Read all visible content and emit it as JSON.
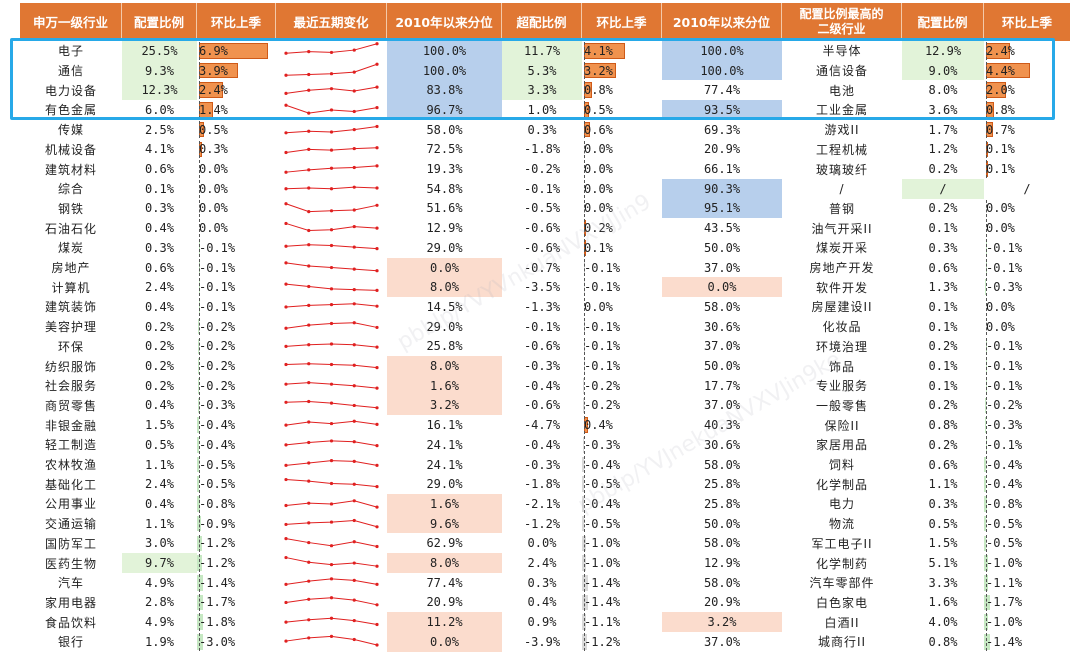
{
  "headers": {
    "industry": "申万一级行业",
    "weight": "配置比例",
    "weight_chg": "环比上季",
    "trend": "最近五期变化",
    "weight_pct": "2010年以来分位",
    "overweight": "超配比例",
    "over_chg": "环比上季",
    "over_pct": "2010年以来分位",
    "top_sub": "配置比例最高的\n二级行业",
    "sub_weight": "配置比例",
    "sub_chg": "环比上季"
  },
  "colors": {
    "header_bg": "#e07733",
    "increase_bar": "#f0924e",
    "decrease_bar": "#c6e8c3",
    "high_percentile": "#b7cfec",
    "low_percentile": "#fbdccd",
    "high_weight": "#e2f3d9",
    "sparkline": "#e02020",
    "highlight_box": "#27a9e8"
  },
  "chart_data": {
    "type": "table",
    "columns": [
      "申万一级行业",
      "配置比例",
      "环比上季",
      "最近五期变化",
      "2010年以来分位",
      "超配比例",
      "环比上季",
      "2010年以来分位",
      "配置比例最高的二级行业",
      "配置比例",
      "环比上季"
    ],
    "highlighted_rows": [
      "电子",
      "通信",
      "电力设备",
      "有色金属"
    ],
    "rows": [
      {
        "ind": "电子",
        "w": "25.5%",
        "wc": "6.9%",
        "wp": "100.0%",
        "ow": "11.7%",
        "oc": "4.1%",
        "op": "100.0%",
        "sub": "半导体",
        "sw": "12.9%",
        "sc": "2.4%",
        "spark": [
          0.35,
          0.45,
          0.4,
          0.55,
          0.95
        ]
      },
      {
        "ind": "通信",
        "w": "9.3%",
        "wc": "3.9%",
        "wp": "100.0%",
        "ow": "5.3%",
        "oc": "3.2%",
        "op": "100.0%",
        "sub": "通信设备",
        "sw": "9.0%",
        "sc": "4.4%",
        "spark": [
          0.2,
          0.25,
          0.3,
          0.4,
          0.9
        ]
      },
      {
        "ind": "电力设备",
        "w": "12.3%",
        "wc": "2.4%",
        "wp": "83.8%",
        "ow": "3.3%",
        "oc": "0.8%",
        "op": "77.4%",
        "sub": "电池",
        "sw": "8.0%",
        "sc": "2.0%",
        "spark": [
          0.3,
          0.5,
          0.6,
          0.45,
          0.7
        ]
      },
      {
        "ind": "有色金属",
        "w": "6.0%",
        "wc": "1.4%",
        "wp": "96.7%",
        "ow": "1.0%",
        "oc": "0.5%",
        "op": "93.5%",
        "sub": "工业金属",
        "sw": "3.6%",
        "sc": "0.8%",
        "spark": [
          0.8,
          0.3,
          0.5,
          0.4,
          0.65
        ]
      },
      {
        "ind": "传媒",
        "w": "2.5%",
        "wc": "0.5%",
        "wp": "58.0%",
        "ow": "0.3%",
        "oc": "0.6%",
        "op": "69.3%",
        "sub": "游戏II",
        "sw": "1.7%",
        "sc": "0.7%",
        "spark": [
          0.3,
          0.4,
          0.35,
          0.5,
          0.7
        ]
      },
      {
        "ind": "机械设备",
        "w": "4.1%",
        "wc": "0.3%",
        "wp": "72.5%",
        "ow": "-1.8%",
        "oc": "0.0%",
        "op": "20.9%",
        "sub": "工程机械",
        "sw": "1.2%",
        "sc": "0.1%",
        "spark": [
          0.3,
          0.5,
          0.45,
          0.55,
          0.6
        ]
      },
      {
        "ind": "建筑材料",
        "w": "0.6%",
        "wc": "0.0%",
        "wp": "19.3%",
        "ow": "-0.2%",
        "oc": "0.0%",
        "op": "66.1%",
        "sub": "玻璃玻纤",
        "sw": "0.2%",
        "sc": "0.1%",
        "spark": [
          0.3,
          0.45,
          0.55,
          0.6,
          0.7
        ]
      },
      {
        "ind": "综合",
        "w": "0.1%",
        "wc": "0.0%",
        "wp": "54.8%",
        "ow": "-0.1%",
        "oc": "0.0%",
        "op": "90.3%",
        "sub": "/",
        "sw": "/",
        "sc": "/",
        "spark": [
          0.5,
          0.55,
          0.5,
          0.6,
          0.55
        ]
      },
      {
        "ind": "钢铁",
        "w": "0.3%",
        "wc": "0.0%",
        "wp": "51.6%",
        "ow": "-0.5%",
        "oc": "0.0%",
        "op": "95.1%",
        "sub": "普钢",
        "sw": "0.2%",
        "sc": "0.0%",
        "spark": [
          0.8,
          0.3,
          0.35,
          0.4,
          0.7
        ]
      },
      {
        "ind": "石油石化",
        "w": "0.4%",
        "wc": "0.0%",
        "wp": "12.9%",
        "ow": "-0.6%",
        "oc": "0.2%",
        "op": "43.5%",
        "sub": "油气开采II",
        "sw": "0.1%",
        "sc": "0.0%",
        "spark": [
          0.8,
          0.35,
          0.4,
          0.6,
          0.5
        ]
      },
      {
        "ind": "煤炭",
        "w": "0.3%",
        "wc": "-0.1%",
        "wp": "29.0%",
        "ow": "-0.6%",
        "oc": "0.1%",
        "op": "50.0%",
        "sub": "煤炭开采",
        "sw": "0.3%",
        "sc": "-0.1%",
        "spark": [
          0.6,
          0.7,
          0.65,
          0.55,
          0.45
        ]
      },
      {
        "ind": "房地产",
        "w": "0.6%",
        "wc": "-0.1%",
        "wp": "0.0%",
        "ow": "-0.7%",
        "oc": "-0.1%",
        "op": "37.0%",
        "sub": "房地产开发",
        "sw": "0.6%",
        "sc": "-0.1%",
        "spark": [
          0.8,
          0.6,
          0.5,
          0.4,
          0.3
        ]
      },
      {
        "ind": "计算机",
        "w": "2.4%",
        "wc": "-0.1%",
        "wp": "8.0%",
        "ow": "-3.5%",
        "oc": "-0.1%",
        "op": "0.0%",
        "sub": "软件开发",
        "sw": "1.3%",
        "sc": "-0.3%",
        "spark": [
          0.7,
          0.55,
          0.4,
          0.35,
          0.3
        ]
      },
      {
        "ind": "建筑装饰",
        "w": "0.4%",
        "wc": "-0.1%",
        "wp": "14.5%",
        "ow": "-1.3%",
        "oc": "0.0%",
        "op": "58.0%",
        "sub": "房屋建设II",
        "sw": "0.1%",
        "sc": "0.0%",
        "spark": [
          0.5,
          0.6,
          0.65,
          0.7,
          0.55
        ]
      },
      {
        "ind": "美容护理",
        "w": "0.2%",
        "wc": "-0.2%",
        "wp": "29.0%",
        "ow": "-0.1%",
        "oc": "-0.1%",
        "op": "30.6%",
        "sub": "化妆品",
        "sw": "0.1%",
        "sc": "0.0%",
        "spark": [
          0.4,
          0.6,
          0.7,
          0.75,
          0.45
        ]
      },
      {
        "ind": "环保",
        "w": "0.2%",
        "wc": "-0.2%",
        "wp": "25.8%",
        "ow": "-0.6%",
        "oc": "-0.1%",
        "op": "37.0%",
        "sub": "环境治理",
        "sw": "0.2%",
        "sc": "-0.1%",
        "spark": [
          0.5,
          0.6,
          0.65,
          0.6,
          0.45
        ]
      },
      {
        "ind": "纺织服饰",
        "w": "0.2%",
        "wc": "-0.2%",
        "wp": "8.0%",
        "ow": "-0.3%",
        "oc": "-0.1%",
        "op": "50.0%",
        "sub": "饰品",
        "sw": "0.1%",
        "sc": "-0.1%",
        "spark": [
          0.6,
          0.65,
          0.6,
          0.55,
          0.4
        ]
      },
      {
        "ind": "社会服务",
        "w": "0.2%",
        "wc": "-0.2%",
        "wp": "1.6%",
        "ow": "-0.4%",
        "oc": "-0.2%",
        "op": "17.7%",
        "sub": "专业服务",
        "sw": "0.1%",
        "sc": "-0.1%",
        "spark": [
          0.6,
          0.7,
          0.6,
          0.5,
          0.35
        ]
      },
      {
        "ind": "商贸零售",
        "w": "0.4%",
        "wc": "-0.3%",
        "wp": "3.2%",
        "ow": "-0.6%",
        "oc": "-0.2%",
        "op": "37.0%",
        "sub": "一般零售",
        "sw": "0.2%",
        "sc": "-0.2%",
        "spark": [
          0.7,
          0.75,
          0.65,
          0.5,
          0.35
        ]
      },
      {
        "ind": "非银金融",
        "w": "1.5%",
        "wc": "-0.4%",
        "wp": "16.1%",
        "ow": "-4.7%",
        "oc": "0.4%",
        "op": "40.3%",
        "sub": "保险II",
        "sw": "0.8%",
        "sc": "-0.3%",
        "spark": [
          0.5,
          0.7,
          0.6,
          0.75,
          0.55
        ]
      },
      {
        "ind": "轻工制造",
        "w": "0.5%",
        "wc": "-0.4%",
        "wp": "24.1%",
        "ow": "-0.4%",
        "oc": "-0.3%",
        "op": "30.6%",
        "sub": "家居用品",
        "sw": "0.2%",
        "sc": "-0.1%",
        "spark": [
          0.5,
          0.65,
          0.75,
          0.7,
          0.45
        ]
      },
      {
        "ind": "农林牧渔",
        "w": "1.1%",
        "wc": "-0.5%",
        "wp": "24.1%",
        "ow": "-0.3%",
        "oc": "-0.4%",
        "op": "58.0%",
        "sub": "饲料",
        "sw": "0.6%",
        "sc": "-0.4%",
        "spark": [
          0.45,
          0.6,
          0.75,
          0.7,
          0.45
        ]
      },
      {
        "ind": "基础化工",
        "w": "2.4%",
        "wc": "-0.5%",
        "wp": "29.0%",
        "ow": "-1.8%",
        "oc": "-0.5%",
        "op": "25.8%",
        "sub": "化学制品",
        "sw": "1.1%",
        "sc": "-0.4%",
        "spark": [
          0.8,
          0.7,
          0.55,
          0.5,
          0.35
        ]
      },
      {
        "ind": "公用事业",
        "w": "0.4%",
        "wc": "-0.8%",
        "wp": "1.6%",
        "ow": "-2.1%",
        "oc": "-0.4%",
        "op": "25.8%",
        "sub": "电力",
        "sw": "0.3%",
        "sc": "-0.8%",
        "spark": [
          0.4,
          0.55,
          0.5,
          0.7,
          0.3
        ]
      },
      {
        "ind": "交通运输",
        "w": "1.1%",
        "wc": "-0.9%",
        "wp": "9.6%",
        "ow": "-1.2%",
        "oc": "-0.5%",
        "op": "50.0%",
        "sub": "物流",
        "sw": "0.5%",
        "sc": "-0.5%",
        "spark": [
          0.45,
          0.55,
          0.6,
          0.7,
          0.3
        ]
      },
      {
        "ind": "国防军工",
        "w": "3.0%",
        "wc": "-1.2%",
        "wp": "62.9%",
        "ow": "0.0%",
        "oc": "-1.0%",
        "op": "58.0%",
        "sub": "军工电子II",
        "sw": "1.5%",
        "sc": "-0.5%",
        "spark": [
          0.8,
          0.55,
          0.35,
          0.6,
          0.3
        ]
      },
      {
        "ind": "医药生物",
        "w": "9.7%",
        "wc": "-1.2%",
        "wp": "8.0%",
        "ow": "2.4%",
        "oc": "-1.0%",
        "op": "12.9%",
        "sub": "化学制药",
        "sw": "5.1%",
        "sc": "-1.0%",
        "spark": [
          0.85,
          0.55,
          0.4,
          0.5,
          0.3
        ]
      },
      {
        "ind": "汽车",
        "w": "4.9%",
        "wc": "-1.4%",
        "wp": "77.4%",
        "ow": "0.3%",
        "oc": "-1.4%",
        "op": "58.0%",
        "sub": "汽车零部件",
        "sw": "3.3%",
        "sc": "-1.1%",
        "spark": [
          0.4,
          0.6,
          0.75,
          0.65,
          0.4
        ]
      },
      {
        "ind": "家用电器",
        "w": "2.8%",
        "wc": "-1.7%",
        "wp": "20.9%",
        "ow": "0.4%",
        "oc": "-1.4%",
        "op": "20.9%",
        "sub": "白色家电",
        "sw": "1.6%",
        "sc": "-1.7%",
        "spark": [
          0.5,
          0.7,
          0.8,
          0.65,
          0.35
        ]
      },
      {
        "ind": "食品饮料",
        "w": "4.9%",
        "wc": "-1.8%",
        "wp": "11.2%",
        "ow": "0.9%",
        "oc": "-1.1%",
        "op": "3.2%",
        "sub": "白酒II",
        "sw": "4.0%",
        "sc": "-1.0%",
        "spark": [
          0.5,
          0.65,
          0.75,
          0.6,
          0.35
        ]
      },
      {
        "ind": "银行",
        "w": "1.9%",
        "wc": "-3.0%",
        "wp": "0.0%",
        "ow": "-3.9%",
        "oc": "-1.2%",
        "op": "37.0%",
        "sub": "城商行II",
        "sw": "0.8%",
        "sc": "-1.4%",
        "spark": [
          0.55,
          0.75,
          0.85,
          0.65,
          0.3
        ]
      }
    ]
  }
}
